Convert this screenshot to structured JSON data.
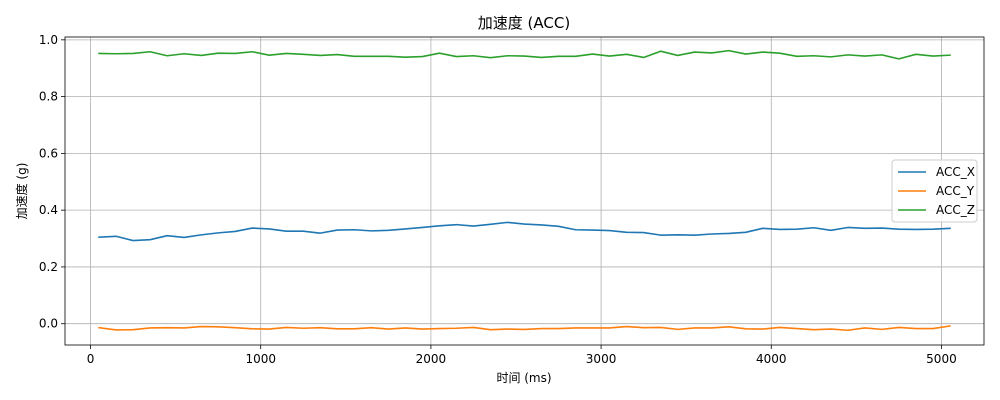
{
  "chart_data": {
    "type": "line",
    "title": "加速度 (ACC)",
    "xlabel": "时间 (ms)",
    "ylabel": "加速度 (g)",
    "xlim": [
      -150,
      5250
    ],
    "ylim": [
      -0.075,
      1.01
    ],
    "xticks": [
      0,
      1000,
      2000,
      3000,
      4000,
      5000
    ],
    "yticks": [
      0.0,
      0.2,
      0.4,
      0.6,
      0.8,
      1.0
    ],
    "xtick_labels": [
      "0",
      "1000",
      "2000",
      "3000",
      "4000",
      "5000"
    ],
    "ytick_labels": [
      "0.0",
      "0.2",
      "0.4",
      "0.6",
      "0.8",
      "1.0"
    ],
    "grid": true,
    "legend_position": "center-right",
    "x": [
      50,
      150,
      250,
      350,
      450,
      550,
      650,
      750,
      850,
      950,
      1050,
      1150,
      1250,
      1350,
      1450,
      1550,
      1650,
      1750,
      1850,
      1950,
      2050,
      2150,
      2250,
      2350,
      2450,
      2550,
      2650,
      2750,
      2850,
      2950,
      3050,
      3150,
      3250,
      3350,
      3450,
      3550,
      3650,
      3750,
      3850,
      3950,
      4050,
      4150,
      4250,
      4350,
      4450,
      4550,
      4650,
      4750,
      4850,
      4950,
      5050
    ],
    "series": [
      {
        "name": "ACC_X",
        "color": "#1f77b4",
        "values": [
          0.305,
          0.308,
          0.293,
          0.296,
          0.31,
          0.304,
          0.313,
          0.32,
          0.325,
          0.337,
          0.334,
          0.326,
          0.326,
          0.319,
          0.33,
          0.331,
          0.327,
          0.329,
          0.334,
          0.339,
          0.345,
          0.349,
          0.344,
          0.35,
          0.357,
          0.351,
          0.348,
          0.343,
          0.331,
          0.33,
          0.328,
          0.322,
          0.321,
          0.312,
          0.313,
          0.312,
          0.316,
          0.318,
          0.322,
          0.336,
          0.332,
          0.333,
          0.338,
          0.329,
          0.339,
          0.336,
          0.337,
          0.333,
          0.332,
          0.333,
          0.336
        ]
      },
      {
        "name": "ACC_Y",
        "color": "#ff7f0e",
        "values": [
          -0.014,
          -0.022,
          -0.021,
          -0.015,
          -0.014,
          -0.015,
          -0.01,
          -0.011,
          -0.014,
          -0.018,
          -0.019,
          -0.013,
          -0.016,
          -0.014,
          -0.018,
          -0.018,
          -0.014,
          -0.019,
          -0.015,
          -0.019,
          -0.017,
          -0.016,
          -0.013,
          -0.021,
          -0.019,
          -0.02,
          -0.017,
          -0.017,
          -0.015,
          -0.015,
          -0.015,
          -0.01,
          -0.014,
          -0.013,
          -0.02,
          -0.015,
          -0.015,
          -0.011,
          -0.018,
          -0.019,
          -0.013,
          -0.017,
          -0.021,
          -0.019,
          -0.023,
          -0.015,
          -0.02,
          -0.013,
          -0.017,
          -0.017,
          -0.008
        ]
      },
      {
        "name": "ACC_Z",
        "color": "#2ca02c",
        "values": [
          0.952,
          0.951,
          0.952,
          0.958,
          0.944,
          0.951,
          0.945,
          0.953,
          0.952,
          0.958,
          0.946,
          0.952,
          0.949,
          0.945,
          0.948,
          0.942,
          0.942,
          0.942,
          0.939,
          0.941,
          0.953,
          0.941,
          0.944,
          0.937,
          0.944,
          0.943,
          0.938,
          0.942,
          0.942,
          0.95,
          0.943,
          0.949,
          0.938,
          0.96,
          0.945,
          0.957,
          0.954,
          0.962,
          0.95,
          0.957,
          0.953,
          0.942,
          0.944,
          0.94,
          0.947,
          0.943,
          0.947,
          0.933,
          0.949,
          0.943,
          0.946
        ]
      }
    ]
  }
}
